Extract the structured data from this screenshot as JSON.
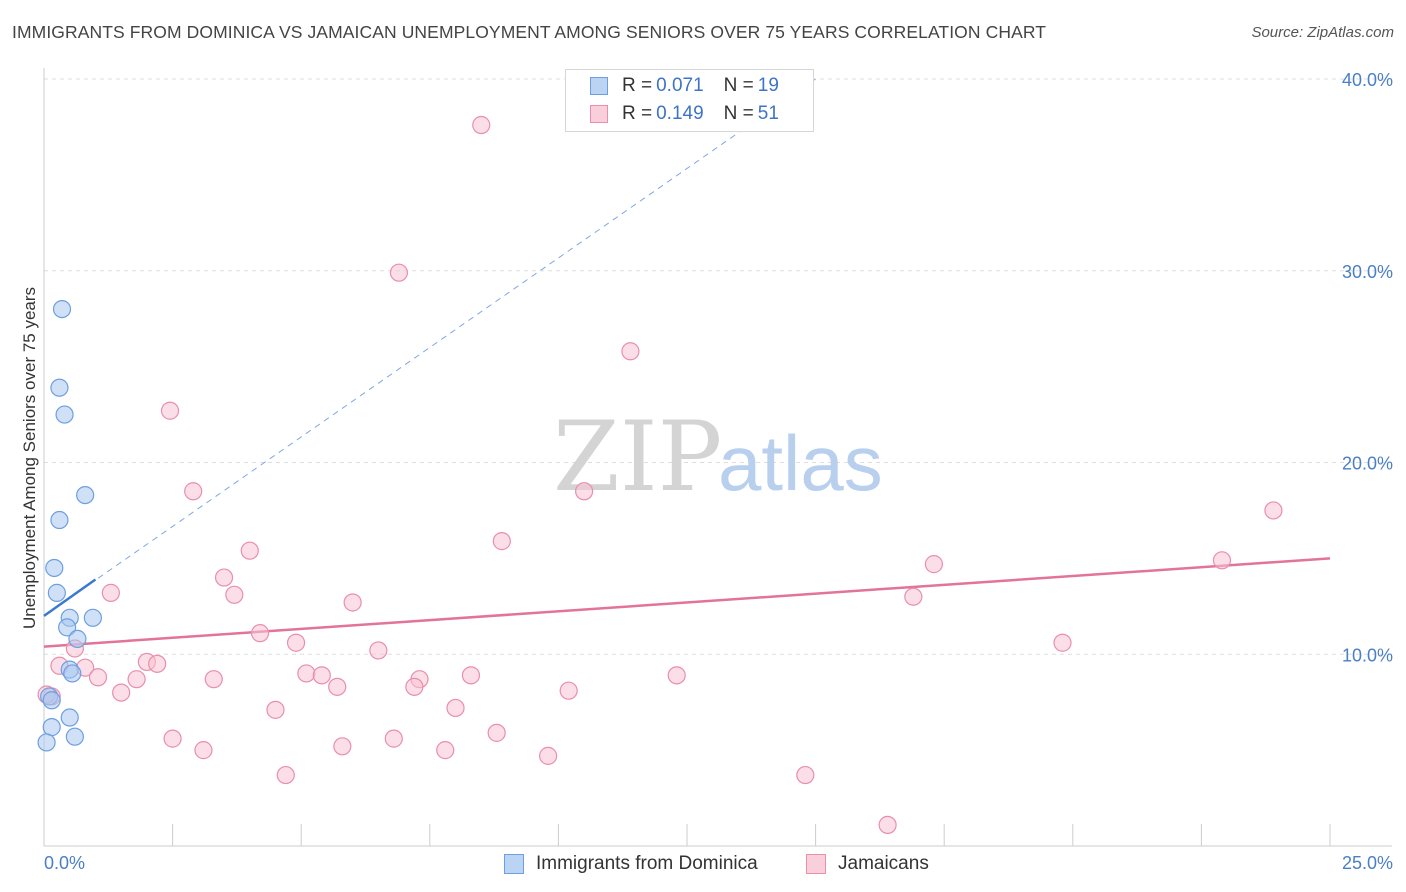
{
  "title": "IMMIGRANTS FROM DOMINICA VS JAMAICAN UNEMPLOYMENT AMONG SENIORS OVER 75 YEARS CORRELATION CHART",
  "source": "Source: ZipAtlas.com",
  "watermark": {
    "zip": "ZIP",
    "atlas": "atlas"
  },
  "legend": {
    "rows": [
      {
        "r_label": "R =",
        "r_value": "0.071",
        "n_label": "N =",
        "n_value": "19"
      },
      {
        "r_label": "R =",
        "r_value": "0.149",
        "n_label": "N =",
        "n_value": "51"
      }
    ]
  },
  "chart_data": {
    "type": "scatter",
    "title": "IMMIGRANTS FROM DOMINICA VS JAMAICAN UNEMPLOYMENT AMONG SENIORS OVER 75 YEARS CORRELATION CHART",
    "xlabel": "",
    "ylabel": "Unemployment Among Seniors over 75 years",
    "xlim": [
      0,
      25
    ],
    "ylim": [
      0,
      40
    ],
    "x_tick_labels": [
      {
        "value": 0,
        "label": "0.0%"
      },
      {
        "value": 25,
        "label": "25.0%"
      }
    ],
    "y_ticks": [
      {
        "value": 10,
        "label": "10.0%"
      },
      {
        "value": 20,
        "label": "20.0%"
      },
      {
        "value": 30,
        "label": "30.0%"
      },
      {
        "value": 40,
        "label": "40.0%"
      }
    ],
    "grid": "horizontal-dashed",
    "legend_position": "top-center",
    "series": [
      {
        "name": "Immigrants from Dominica",
        "color": "#a9c8f0",
        "stroke": "#6d9fe0",
        "points": [
          [
            0.35,
            28.0
          ],
          [
            0.3,
            23.9
          ],
          [
            0.4,
            22.5
          ],
          [
            0.8,
            18.3
          ],
          [
            0.3,
            17.0
          ],
          [
            0.2,
            14.5
          ],
          [
            0.25,
            13.2
          ],
          [
            0.5,
            11.9
          ],
          [
            0.95,
            11.9
          ],
          [
            0.45,
            11.4
          ],
          [
            0.65,
            10.8
          ],
          [
            0.5,
            9.2
          ],
          [
            0.55,
            9.0
          ],
          [
            0.1,
            7.8
          ],
          [
            0.15,
            7.6
          ],
          [
            0.5,
            6.7
          ],
          [
            0.15,
            6.2
          ],
          [
            0.6,
            5.7
          ],
          [
            0.05,
            5.4
          ]
        ],
        "trend": {
          "x": [
            0,
            1.0
          ],
          "y": [
            12.0,
            13.9
          ],
          "dashed_extension_to": [
            15,
            40.0
          ]
        }
      },
      {
        "name": "Jamaicans",
        "color": "#f7c3d3",
        "stroke": "#e98fab",
        "points": [
          [
            8.5,
            37.6
          ],
          [
            6.9,
            29.9
          ],
          [
            11.4,
            25.8
          ],
          [
            2.45,
            22.7
          ],
          [
            2.9,
            18.5
          ],
          [
            10.5,
            18.5
          ],
          [
            23.9,
            17.5
          ],
          [
            8.9,
            15.9
          ],
          [
            4.0,
            15.4
          ],
          [
            17.3,
            14.7
          ],
          [
            22.9,
            14.9
          ],
          [
            3.5,
            14.0
          ],
          [
            1.3,
            13.2
          ],
          [
            3.7,
            13.1
          ],
          [
            16.9,
            13.0
          ],
          [
            6.0,
            12.7
          ],
          [
            4.2,
            11.1
          ],
          [
            19.8,
            10.6
          ],
          [
            4.9,
            10.6
          ],
          [
            6.5,
            10.2
          ],
          [
            0.6,
            10.3
          ],
          [
            2.0,
            9.6
          ],
          [
            2.2,
            9.5
          ],
          [
            0.3,
            9.4
          ],
          [
            0.8,
            9.3
          ],
          [
            5.1,
            9.0
          ],
          [
            5.4,
            8.9
          ],
          [
            8.3,
            8.9
          ],
          [
            12.3,
            8.9
          ],
          [
            1.05,
            8.8
          ],
          [
            1.8,
            8.7
          ],
          [
            3.3,
            8.7
          ],
          [
            7.3,
            8.7
          ],
          [
            7.2,
            8.3
          ],
          [
            5.7,
            8.3
          ],
          [
            1.5,
            8.0
          ],
          [
            10.2,
            8.1
          ],
          [
            0.15,
            7.8
          ],
          [
            4.5,
            7.1
          ],
          [
            8.0,
            7.2
          ],
          [
            8.8,
            5.9
          ],
          [
            2.5,
            5.6
          ],
          [
            6.8,
            5.6
          ],
          [
            5.8,
            5.2
          ],
          [
            3.1,
            5.0
          ],
          [
            7.8,
            5.0
          ],
          [
            9.8,
            4.7
          ],
          [
            4.7,
            3.7
          ],
          [
            14.8,
            3.7
          ],
          [
            16.4,
            1.1
          ],
          [
            0.05,
            7.9
          ]
        ],
        "trend": {
          "x": [
            0,
            25
          ],
          "y": [
            10.4,
            15.0
          ]
        }
      }
    ]
  },
  "bottom_legend": [
    {
      "label": "Immigrants from Dominica",
      "fill": "#bcd4f4",
      "stroke": "#6d9fe0"
    },
    {
      "label": "Jamaicans",
      "fill": "#f9cfdc",
      "stroke": "#e98fab"
    }
  ]
}
